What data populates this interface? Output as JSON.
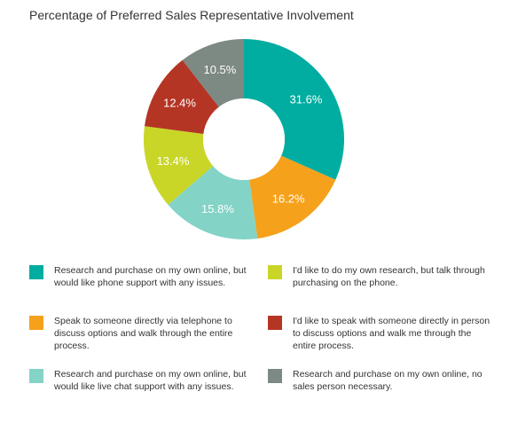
{
  "chart_data": {
    "type": "pie",
    "variant": "donut",
    "title": "Percentage of Preferred Sales Representative Involvement",
    "slices": [
      {
        "label": "Research and purchase on my own online, but would like phone support with any issues.",
        "value": 31.6,
        "display": "31.6%",
        "color": "#00ada0"
      },
      {
        "label": "Speak to someone directly via telephone to discuss options and walk through the entire process.",
        "value": 16.2,
        "display": "16.2%",
        "color": "#f5a11c"
      },
      {
        "label": "Research and purchase on my own online, but would like live chat support with any issues.",
        "value": 15.8,
        "display": "15.8%",
        "color": "#83d3c6"
      },
      {
        "label": "I'd like to do my own research, but talk through purchasing on the phone.",
        "value": 13.4,
        "display": "13.4%",
        "color": "#c9d627"
      },
      {
        "label": "I'd like to speak with someone directly in person to discuss options and walk me through the entire process.",
        "value": 12.4,
        "display": "12.4%",
        "color": "#b53525"
      },
      {
        "label": "Research and purchase on my own online, no sales person necessary.",
        "value": 10.5,
        "display": "10.5%",
        "color": "#7d8983"
      }
    ],
    "legend_placement": "bottom"
  },
  "legend": {
    "left": [
      {
        "text": "Research and purchase on my own online, but would like phone support with any issues.",
        "color": "#00ada0"
      },
      {
        "text": "Speak to someone directly via telephone to discuss options and walk through the entire process.",
        "color": "#f5a11c"
      },
      {
        "text": "Research and purchase on my own online, but would like live chat support with any issues.",
        "color": "#83d3c6"
      }
    ],
    "right": [
      {
        "text": "I'd like to do my own research, but talk through purchasing on the phone.",
        "color": "#c9d627"
      },
      {
        "text": "I'd like to speak with someone directly in person to discuss options and walk me through the entire process.",
        "color": "#b53525"
      },
      {
        "text": "Research and purchase on my own online, no sales person necessary.",
        "color": "#7d8983"
      }
    ]
  }
}
